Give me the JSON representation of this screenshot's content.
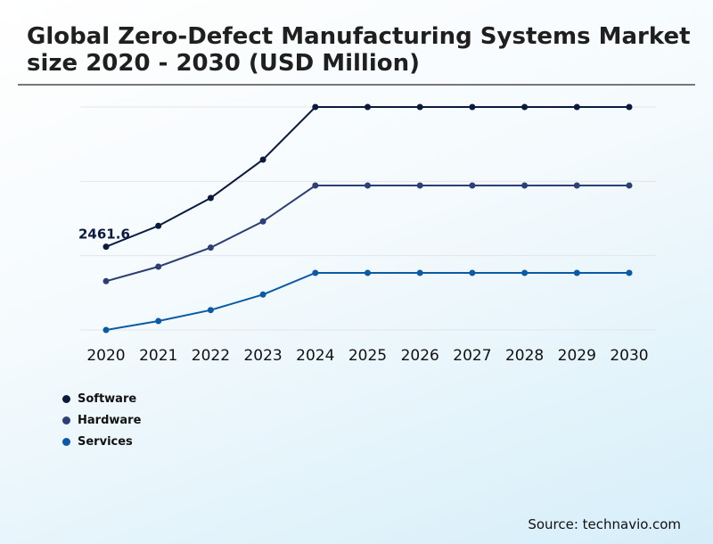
{
  "chart_data": {
    "type": "line",
    "title": "Global Zero-Defect Manufacturing Systems Market size 2020 - 2030 (USD Million)",
    "categories": [
      "2020",
      "2021",
      "2022",
      "2023",
      "2024",
      "2025",
      "2026",
      "2027",
      "2028",
      "2029",
      "2030"
    ],
    "series": [
      {
        "name": "Software",
        "color": "#0b1a3f",
        "values": [
          2461.6,
          3079,
          3904,
          5038,
          6594,
          6594,
          6594,
          6594,
          6594,
          6594,
          6594
        ]
      },
      {
        "name": "Hardware",
        "color": "#2d3f75",
        "values": [
          1443,
          1873,
          2435,
          3210,
          4273,
          4273,
          4273,
          4273,
          4273,
          4273,
          4273
        ]
      },
      {
        "name": "Services",
        "color": "#0a5aa8",
        "values": [
          0,
          264,
          588,
          1047,
          1688,
          1688,
          1688,
          1688,
          1688,
          1688,
          1688
        ]
      }
    ],
    "data_labels": [
      {
        "series": "Software",
        "category": "2020",
        "text": "2461.6"
      }
    ],
    "ylim": [
      0,
      6594
    ],
    "grid": true,
    "legend": "bottom-left"
  },
  "source": "Source: technavio.com"
}
